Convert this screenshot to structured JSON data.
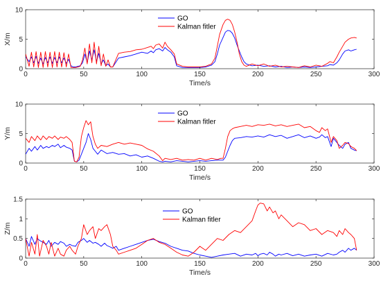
{
  "chart_data": [
    {
      "type": "line",
      "xlabel": "Time/s",
      "ylabel": "X/m",
      "xlim": [
        0,
        300
      ],
      "ylim": [
        0,
        10
      ],
      "xticks": [
        "0",
        "50",
        "100",
        "150",
        "200",
        "250",
        "300"
      ],
      "yticks": [
        "0",
        "5",
        "10"
      ],
      "legend_position": "top-center",
      "x": [
        0,
        3,
        5,
        7,
        9,
        11,
        13,
        15,
        17,
        19,
        21,
        23,
        25,
        27,
        29,
        31,
        33,
        35,
        37,
        39,
        41,
        43,
        45,
        47,
        49,
        51,
        53,
        55,
        57,
        59,
        61,
        63,
        65,
        67,
        69,
        71,
        73,
        75,
        80,
        85,
        90,
        95,
        100,
        105,
        108,
        110,
        112,
        115,
        118,
        120,
        122,
        125,
        128,
        130,
        135,
        140,
        145,
        150,
        155,
        160,
        163,
        165,
        167,
        170,
        172,
        174,
        176,
        178,
        180,
        182,
        184,
        186,
        188,
        190,
        195,
        200,
        205,
        210,
        215,
        220,
        225,
        230,
        235,
        240,
        245,
        250,
        255,
        260,
        262,
        265,
        268,
        270,
        273,
        275,
        278,
        280,
        283,
        285
      ],
      "series": [
        {
          "name": "GO",
          "values": [
            2.0,
            1.2,
            2.0,
            1.0,
            2.1,
            0.9,
            1.8,
            0.8,
            1.9,
            1.0,
            2.0,
            0.9,
            1.9,
            1.0,
            2.0,
            1.0,
            1.8,
            0.9,
            1.6,
            0.5,
            0.3,
            0.3,
            0.4,
            0.5,
            1.0,
            2.5,
            1.0,
            3.0,
            1.5,
            3.2,
            1.2,
            2.6,
            0.8,
            1.5,
            0.5,
            0.8,
            0.3,
            0.3,
            1.8,
            2.0,
            2.2,
            2.5,
            2.8,
            2.6,
            3.0,
            2.7,
            3.2,
            3.4,
            3.0,
            3.6,
            3.2,
            2.8,
            2.0,
            0.5,
            0.2,
            0.2,
            0.2,
            0.2,
            0.3,
            0.6,
            1.2,
            2.5,
            4.0,
            5.3,
            6.2,
            6.5,
            6.4,
            6.0,
            5.2,
            4.0,
            3.0,
            2.0,
            1.2,
            0.8,
            0.5,
            0.6,
            0.4,
            0.5,
            0.3,
            0.4,
            0.2,
            0.3,
            0.2,
            0.3,
            0.2,
            0.3,
            0.4,
            0.5,
            0.7,
            0.6,
            1.0,
            1.5,
            2.5,
            3.0,
            3.2,
            3.0,
            3.2,
            3.3
          ]
        },
        {
          "name": "Kalman fitler",
          "values": [
            2.5,
            0.4,
            2.8,
            0.3,
            2.9,
            0.2,
            2.8,
            0.2,
            2.9,
            0.3,
            2.8,
            0.2,
            2.9,
            0.3,
            2.8,
            0.3,
            2.7,
            0.3,
            2.5,
            0.2,
            0.2,
            0.2,
            0.3,
            0.4,
            1.5,
            3.5,
            0.8,
            4.2,
            1.0,
            4.5,
            0.8,
            3.8,
            0.5,
            2.5,
            0.4,
            1.5,
            0.3,
            0.3,
            2.6,
            2.8,
            2.9,
            3.2,
            3.3,
            3.6,
            3.8,
            3.4,
            4.0,
            4.2,
            3.5,
            4.5,
            3.8,
            3.2,
            2.5,
            0.8,
            0.4,
            0.3,
            0.3,
            0.3,
            0.4,
            0.8,
            1.8,
            3.8,
            5.8,
            7.5,
            8.2,
            8.4,
            8.2,
            7.5,
            6.2,
            4.5,
            2.5,
            1.2,
            0.6,
            0.4,
            0.8,
            0.5,
            0.8,
            0.4,
            0.6,
            0.3,
            0.4,
            0.3,
            0.2,
            0.5,
            0.3,
            0.6,
            0.4,
            0.9,
            1.2,
            1.0,
            2.0,
            2.8,
            3.8,
            4.5,
            5.0,
            5.2,
            5.3,
            5.2
          ]
        }
      ]
    },
    {
      "type": "line",
      "xlabel": "Time/s",
      "ylabel": "Y/m",
      "xlim": [
        0,
        300
      ],
      "ylim": [
        0,
        10
      ],
      "xticks": [
        "0",
        "50",
        "100",
        "150",
        "200",
        "250",
        "300"
      ],
      "yticks": [
        "0",
        "5",
        "10"
      ],
      "legend_position": "top-center",
      "x": [
        0,
        3,
        5,
        8,
        10,
        13,
        15,
        18,
        20,
        23,
        25,
        28,
        30,
        33,
        35,
        38,
        40,
        42,
        44,
        46,
        48,
        50,
        52,
        54,
        56,
        58,
        60,
        62,
        65,
        70,
        75,
        80,
        85,
        90,
        95,
        100,
        105,
        110,
        115,
        118,
        120,
        125,
        130,
        135,
        140,
        145,
        150,
        155,
        160,
        165,
        168,
        170,
        172,
        174,
        176,
        178,
        180,
        185,
        190,
        195,
        200,
        205,
        210,
        215,
        220,
        225,
        230,
        235,
        240,
        245,
        250,
        253,
        255,
        258,
        260,
        263,
        265,
        268,
        270,
        273,
        275,
        278,
        280,
        283,
        285
      ],
      "series": [
        {
          "name": "GO",
          "values": [
            1.5,
            2.5,
            2.0,
            2.8,
            2.2,
            3.0,
            2.5,
            2.8,
            2.6,
            3.0,
            2.8,
            3.2,
            2.6,
            3.0,
            2.7,
            2.5,
            2.2,
            0.3,
            0.2,
            0.5,
            1.5,
            2.5,
            3.5,
            5.0,
            4.0,
            2.5,
            2.0,
            1.5,
            2.2,
            1.6,
            1.8,
            1.5,
            1.6,
            1.2,
            1.4,
            1.0,
            1.2,
            0.8,
            0.3,
            0.2,
            0.3,
            0.2,
            0.4,
            0.3,
            0.2,
            0.3,
            0.4,
            0.3,
            0.4,
            0.5,
            0.5,
            0.5,
            1.0,
            2.0,
            3.0,
            3.8,
            4.2,
            4.3,
            4.5,
            4.4,
            4.6,
            4.4,
            4.8,
            4.5,
            4.7,
            4.2,
            4.5,
            4.8,
            4.3,
            4.6,
            4.2,
            4.4,
            4.8,
            4.3,
            4.5,
            2.8,
            4.2,
            3.5,
            3.0,
            2.5,
            3.2,
            3.5,
            2.5,
            2.2,
            2.1
          ]
        },
        {
          "name": "Kalman fitler",
          "values": [
            4.2,
            3.5,
            4.5,
            3.8,
            4.6,
            3.9,
            4.6,
            4.0,
            4.5,
            4.2,
            4.6,
            4.0,
            4.4,
            4.2,
            4.5,
            4.0,
            3.5,
            0.3,
            0.2,
            1.0,
            4.5,
            6.0,
            7.2,
            6.5,
            7.0,
            4.5,
            3.2,
            2.5,
            3.0,
            2.8,
            3.2,
            3.5,
            3.2,
            3.4,
            3.2,
            3.0,
            2.4,
            2.0,
            1.2,
            0.4,
            0.8,
            0.6,
            0.8,
            0.5,
            0.6,
            0.5,
            0.8,
            0.5,
            0.8,
            0.6,
            0.8,
            0.8,
            2.5,
            4.5,
            5.5,
            5.8,
            6.0,
            6.2,
            6.4,
            6.2,
            6.5,
            6.4,
            6.6,
            6.3,
            6.5,
            6.2,
            6.4,
            6.6,
            6.0,
            6.2,
            5.5,
            5.2,
            6.0,
            5.5,
            5.8,
            3.5,
            4.5,
            3.8,
            2.5,
            3.0,
            3.5,
            3.3,
            2.8,
            2.5,
            2.1
          ]
        }
      ]
    },
    {
      "type": "line",
      "xlabel": "Time/s",
      "ylabel": "Z/m",
      "xlim": [
        0,
        300
      ],
      "ylim": [
        0,
        1.5
      ],
      "xticks": [
        "0",
        "50",
        "100",
        "150",
        "200",
        "250",
        "300"
      ],
      "yticks": [
        "0",
        "0.5",
        "1",
        "1.5"
      ],
      "legend_position": "top-center",
      "x": [
        0,
        3,
        5,
        8,
        10,
        12,
        15,
        18,
        20,
        22,
        25,
        28,
        30,
        33,
        35,
        38,
        40,
        43,
        45,
        48,
        50,
        53,
        55,
        58,
        60,
        63,
        65,
        68,
        70,
        73,
        75,
        78,
        80,
        85,
        90,
        95,
        100,
        105,
        110,
        115,
        120,
        125,
        130,
        135,
        140,
        145,
        150,
        155,
        160,
        165,
        170,
        175,
        180,
        185,
        190,
        195,
        198,
        200,
        202,
        205,
        208,
        210,
        213,
        215,
        218,
        220,
        225,
        230,
        235,
        240,
        245,
        250,
        255,
        260,
        265,
        268,
        270,
        273,
        275,
        278,
        280,
        283,
        285
      ],
      "series": [
        {
          "name": "GO",
          "values": [
            0.5,
            0.3,
            0.55,
            0.35,
            0.5,
            0.45,
            0.4,
            0.35,
            0.45,
            0.3,
            0.4,
            0.35,
            0.42,
            0.38,
            0.3,
            0.35,
            0.32,
            0.3,
            0.4,
            0.45,
            0.5,
            0.4,
            0.45,
            0.38,
            0.4,
            0.35,
            0.3,
            0.38,
            0.32,
            0.28,
            0.25,
            0.3,
            0.2,
            0.25,
            0.3,
            0.35,
            0.4,
            0.45,
            0.48,
            0.42,
            0.38,
            0.3,
            0.25,
            0.2,
            0.18,
            0.12,
            0.08,
            0.05,
            0.02,
            0.05,
            0.08,
            0.1,
            0.12,
            0.05,
            0.1,
            0.08,
            0.12,
            0.06,
            0.1,
            0.12,
            0.08,
            0.15,
            0.1,
            0.05,
            0.1,
            0.08,
            0.12,
            0.06,
            0.1,
            0.05,
            0.08,
            0.1,
            0.05,
            0.12,
            0.08,
            0.1,
            0.15,
            0.2,
            0.15,
            0.25,
            0.2,
            0.25,
            0.2
          ]
        },
        {
          "name": "Kalman fitler",
          "values": [
            0.5,
            0.05,
            0.4,
            0.1,
            0.6,
            0.05,
            0.45,
            0.3,
            0.1,
            0.4,
            0.05,
            0.25,
            0.1,
            0.05,
            0.2,
            0.3,
            0.2,
            0.1,
            0.3,
            0.5,
            0.85,
            0.6,
            0.7,
            0.8,
            0.5,
            0.75,
            0.7,
            0.8,
            0.85,
            0.6,
            0.3,
            0.2,
            0.1,
            0.15,
            0.2,
            0.25,
            0.35,
            0.45,
            0.5,
            0.4,
            0.35,
            0.25,
            0.15,
            0.08,
            0.05,
            0.15,
            0.3,
            0.2,
            0.35,
            0.5,
            0.45,
            0.6,
            0.7,
            0.65,
            0.8,
            0.95,
            1.2,
            1.35,
            1.4,
            1.38,
            1.2,
            1.3,
            1.15,
            1.2,
            1.0,
            1.1,
            0.95,
            0.8,
            0.9,
            0.85,
            0.7,
            0.75,
            0.6,
            0.7,
            0.65,
            0.55,
            0.7,
            0.6,
            0.75,
            0.65,
            0.6,
            0.5,
            0.2
          ]
        }
      ]
    }
  ]
}
